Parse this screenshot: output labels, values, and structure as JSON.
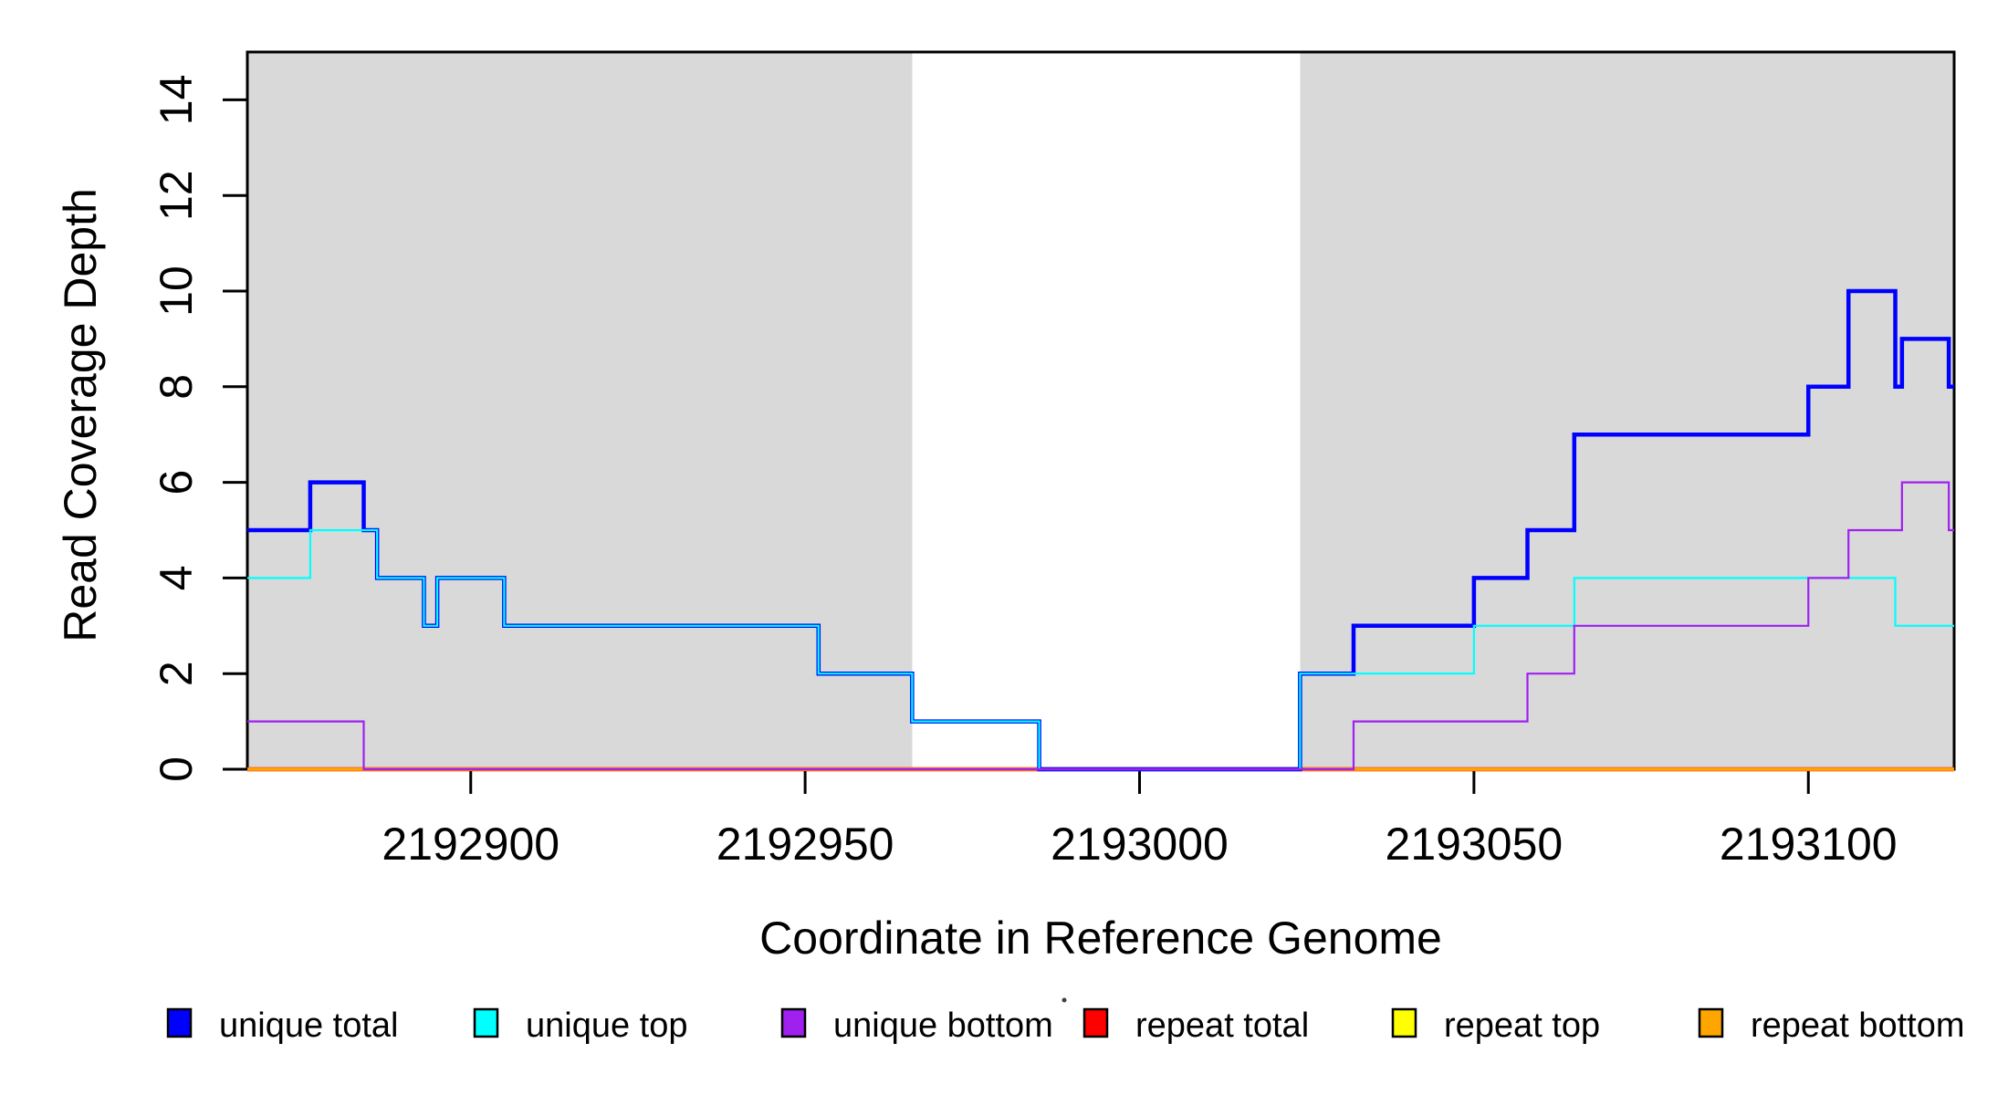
{
  "chart_data": {
    "type": "line",
    "subtype": "step-post",
    "title": "",
    "xlabel": "Coordinate in Reference Genome",
    "ylabel": "Read Coverage Depth",
    "x_range": [
      2192866.6,
      2193121.8
    ],
    "y_range": [
      0,
      15
    ],
    "x_ticks": [
      2192900,
      2192950,
      2193000,
      2193050,
      2193100
    ],
    "y_ticks": [
      0,
      2,
      4,
      6,
      8,
      10,
      12,
      14
    ],
    "grid": "off",
    "legend_position": "bottom",
    "shaded_regions": [
      {
        "x_start": 2192866.6,
        "x_end": 2192966,
        "color": "#D9D9D9"
      },
      {
        "x_start": 2193024,
        "x_end": 2193121.8,
        "color": "#D9D9D9"
      }
    ],
    "draw_order": [
      "repeat_total",
      "repeat_top",
      "repeat_bottom",
      "unique_total",
      "unique_top",
      "unique_bottom"
    ],
    "series": [
      {
        "name": "unique_total",
        "label": "unique total",
        "color": "#0000FF",
        "lwd": 4.5,
        "steps": [
          [
            2192866.6,
            5
          ],
          [
            2192876,
            6
          ],
          [
            2192884,
            5
          ],
          [
            2192886,
            4
          ],
          [
            2192893,
            3
          ],
          [
            2192895,
            4
          ],
          [
            2192905,
            3
          ],
          [
            2192952,
            2
          ],
          [
            2192966,
            1
          ],
          [
            2192985,
            0
          ],
          [
            2193024,
            2
          ],
          [
            2193032,
            3
          ],
          [
            2193050,
            4
          ],
          [
            2193058,
            5
          ],
          [
            2193065,
            7
          ],
          [
            2193100,
            8
          ],
          [
            2193106,
            10
          ],
          [
            2193113,
            8
          ],
          [
            2193114,
            9
          ],
          [
            2193121,
            8
          ]
        ]
      },
      {
        "name": "unique_top",
        "label": "unique top",
        "color": "#00FFFF",
        "lwd": 2.2,
        "steps": [
          [
            2192866.6,
            4
          ],
          [
            2192876,
            5
          ],
          [
            2192886,
            4
          ],
          [
            2192893,
            3
          ],
          [
            2192895,
            4
          ],
          [
            2192905,
            3
          ],
          [
            2192952,
            2
          ],
          [
            2192966,
            1
          ],
          [
            2192985,
            0
          ],
          [
            2193024,
            2
          ],
          [
            2193050,
            3
          ],
          [
            2193065,
            4
          ],
          [
            2193113,
            3
          ]
        ]
      },
      {
        "name": "unique_bottom",
        "label": "unique bottom",
        "color": "#A020F0",
        "lwd": 2.2,
        "steps": [
          [
            2192866.6,
            1
          ],
          [
            2192884,
            0
          ],
          [
            2193032,
            1
          ],
          [
            2193058,
            2
          ],
          [
            2193065,
            3
          ],
          [
            2193100,
            4
          ],
          [
            2193106,
            5
          ],
          [
            2193114,
            6
          ],
          [
            2193121,
            5
          ]
        ]
      },
      {
        "name": "repeat_total",
        "label": "repeat total",
        "color": "#FF0000",
        "lwd": 4.5,
        "steps": [
          [
            2192866.6,
            0
          ]
        ]
      },
      {
        "name": "repeat_top",
        "label": "repeat top",
        "color": "#FFFF00",
        "lwd": 3.2,
        "steps": [
          [
            2192866.6,
            0
          ]
        ]
      },
      {
        "name": "repeat_bottom",
        "label": "repeat bottom",
        "color": "#FFA500",
        "lwd": 2.4,
        "steps": [
          [
            2192866.6,
            0
          ]
        ]
      }
    ]
  }
}
